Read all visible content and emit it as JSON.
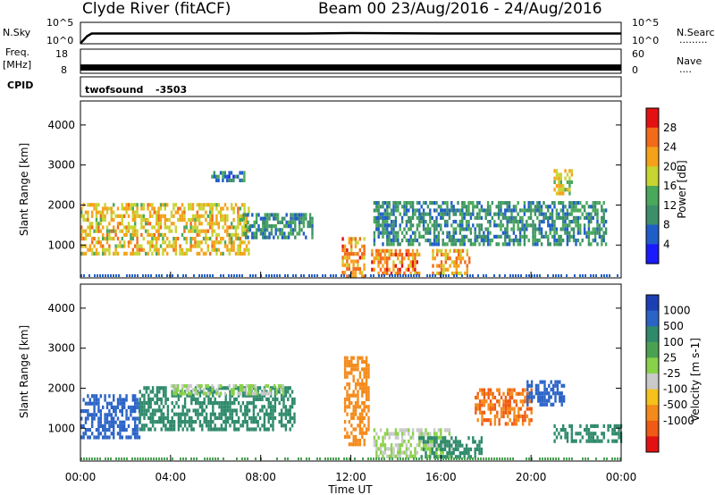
{
  "chart_data": [
    {
      "type": "line",
      "title": "Clyde River (fitACF)",
      "subtitle": "Beam 00  23/Aug/2016 - 24/Aug/2016",
      "panel": "noise",
      "left_label": "N.Sky",
      "right_label": "N.Search",
      "right_legend": "·········",
      "yticks_left": [
        "10^5",
        "10^0"
      ],
      "yticks_right": [
        "10^5",
        "10^0"
      ],
      "series": [
        {
          "name": "N.Sky",
          "x": [
            0,
            0.3,
            0.5,
            2,
            6,
            10,
            12,
            16,
            20,
            24
          ],
          "y": [
            0.1,
            1.8,
            2.4,
            2.4,
            2.4,
            2.4,
            2.5,
            2.4,
            2.4,
            2.4
          ]
        }
      ]
    },
    {
      "type": "line",
      "panel": "frequency",
      "left_label": "Freq.",
      "left_unit": "[MHz]",
      "right_label": "Nave",
      "right_legend": "····",
      "yticks_left": [
        "18",
        "8"
      ],
      "yticks_right": [
        "60",
        "0"
      ],
      "series": [
        {
          "name": "Freq.",
          "x": [
            0,
            24
          ],
          "y": [
            10.2,
            10.2
          ]
        }
      ]
    },
    {
      "type": "heatmap",
      "panel": "cpid",
      "label": "CPID",
      "program": "twofsound",
      "cpid": "-3503"
    },
    {
      "type": "heatmap",
      "panel": "power",
      "ylabel": "Slant Range [km]",
      "yticks": [
        "1000",
        "2000",
        "3000",
        "4000"
      ],
      "ylim": [
        180,
        4600
      ],
      "xlim": [
        0,
        24
      ],
      "colorbar_label": "Power [dB]",
      "colorbar_ticks": [
        "4",
        "8",
        "12",
        "16",
        "20",
        "24",
        "28"
      ],
      "colorbar_colors": [
        "#1a1aff",
        "#1f5ec8",
        "#3d8f69",
        "#49a85a",
        "#c7d431",
        "#f5a21a",
        "#f26a1a",
        "#e21212"
      ],
      "scatter_regions": [
        {
          "x0": 0.0,
          "x1": 7.5,
          "y0": 800,
          "y1": 2050,
          "value": 20
        },
        {
          "x0": 7.2,
          "x1": 10.3,
          "y0": 1150,
          "y1": 1800,
          "value": 11
        },
        {
          "x0": 5.8,
          "x1": 7.3,
          "y0": 2650,
          "y1": 2850,
          "value": 8
        },
        {
          "x0": 11.6,
          "x1": 12.6,
          "y0": 250,
          "y1": 1200,
          "value": 24
        },
        {
          "x0": 12.9,
          "x1": 15.0,
          "y0": 250,
          "y1": 900,
          "value": 24
        },
        {
          "x0": 15.6,
          "x1": 17.3,
          "y0": 250,
          "y1": 900,
          "value": 22
        },
        {
          "x0": 13.0,
          "x1": 23.3,
          "y0": 1000,
          "y1": 2100,
          "value": 10
        },
        {
          "x0": 21.0,
          "x1": 21.8,
          "y0": 2300,
          "y1": 2900,
          "value": 18
        }
      ]
    },
    {
      "type": "heatmap",
      "panel": "velocity",
      "ylabel": "Slant Range [km]",
      "yticks": [
        "1000",
        "2000",
        "3000",
        "4000"
      ],
      "ylim": [
        180,
        4600
      ],
      "xlim": [
        0,
        24
      ],
      "xlabel": "Time UT",
      "xticks": [
        "00:00",
        "04:00",
        "08:00",
        "12:00",
        "16:00",
        "20:00",
        "00:00"
      ],
      "colorbar_label": "Velocity [m s-1]",
      "colorbar_ticks": [
        "1000",
        "500",
        "100",
        "25",
        "-25",
        "-100",
        "-500",
        "-1000"
      ],
      "colorbar_colors": [
        "#1c3fb4",
        "#2b64c6",
        "#2f8a6c",
        "#4ba152",
        "#8ad14a",
        "#c9c9c9",
        "#f4c21a",
        "#f48a1a",
        "#f05a14",
        "#e21212"
      ],
      "scatter_regions": [
        {
          "x0": 0.0,
          "x1": 2.6,
          "y0": 800,
          "y1": 1850,
          "value": 600
        },
        {
          "x0": 2.6,
          "x1": 9.5,
          "y0": 1000,
          "y1": 2050,
          "value": 120
        },
        {
          "x0": 4.0,
          "x1": 9.0,
          "y0": 1850,
          "y1": 2100,
          "value": 0
        },
        {
          "x0": 11.7,
          "x1": 12.8,
          "y0": 600,
          "y1": 2800,
          "value": -200
        },
        {
          "x0": 13.0,
          "x1": 16.5,
          "y0": 250,
          "y1": 1000,
          "value": 0
        },
        {
          "x0": 15.0,
          "x1": 17.8,
          "y0": 250,
          "y1": 800,
          "value": 150
        },
        {
          "x0": 17.5,
          "x1": 20.0,
          "y0": 1100,
          "y1": 2000,
          "value": -300
        },
        {
          "x0": 19.8,
          "x1": 21.5,
          "y0": 1600,
          "y1": 2200,
          "value": 600
        },
        {
          "x0": 21.0,
          "x1": 24.0,
          "y0": 700,
          "y1": 1100,
          "value": 110
        }
      ]
    }
  ]
}
